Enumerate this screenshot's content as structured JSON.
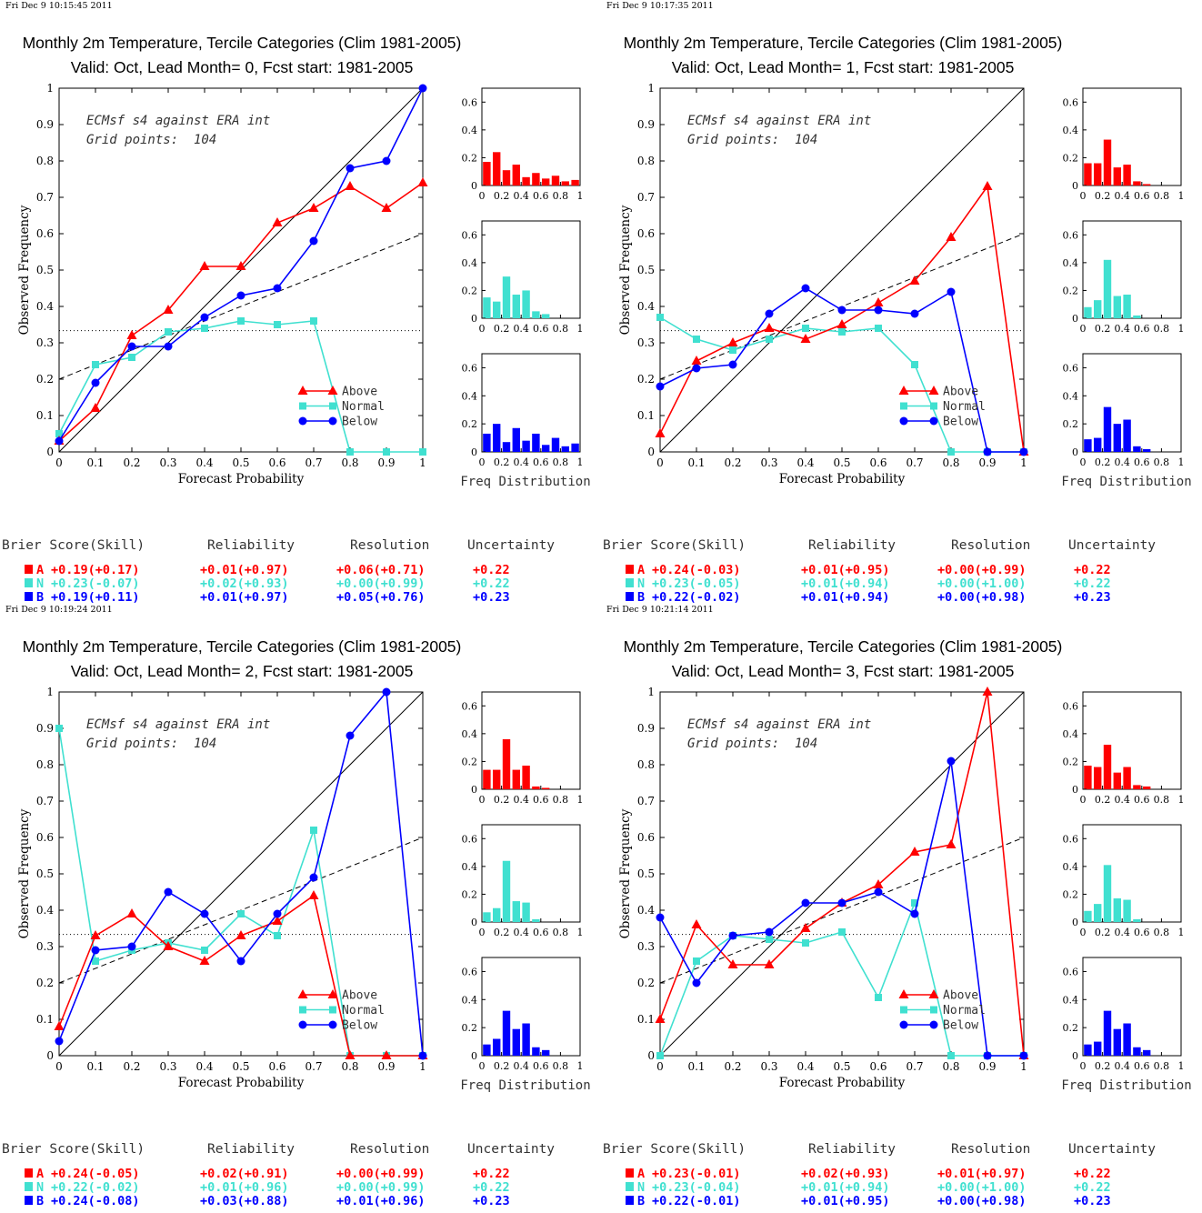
{
  "page": {
    "colors": {
      "above": "#ff0000",
      "normal": "#40e0d0",
      "below": "#0000ff",
      "axis": "#000000"
    },
    "xlabel": "Forecast Probability",
    "ylabel": "Observed Frequency",
    "freq_label": "Freq Distribution",
    "model_text": "ECMsf s4 against ERA int",
    "grid_text": "Grid points:  104",
    "legend": [
      "Above",
      "Normal",
      "Below"
    ],
    "score_headers": [
      "Brier Score(Skill)",
      "Reliability",
      "Resolution",
      "Uncertainty"
    ],
    "score_letters": [
      "A",
      "N",
      "B"
    ],
    "main_xticks": [
      "0",
      "0.1",
      "0.2",
      "0.3",
      "0.4",
      "0.5",
      "0.6",
      "0.7",
      "0.8",
      "0.9",
      "1"
    ],
    "main_yticks": [
      "0",
      "0.1",
      "0.2",
      "0.3",
      "0.4",
      "0.5",
      "0.6",
      "0.7",
      "0.8",
      "0.9",
      "1"
    ],
    "hist_xticks": [
      "0",
      "0.2",
      "0.4",
      "0.6",
      "0.8",
      "1"
    ],
    "hist_yticks": [
      "0",
      "0.2",
      "0.4",
      "0.6"
    ]
  },
  "chart_data": [
    {
      "type": "line",
      "timestamp": "Fri Dec  9 10:15:45 2011",
      "title": "Monthly 2m Temperature, Tercile Categories (Clim 1981-2005)",
      "subtitle": "Valid: Oct, Lead Month= 0, Fcst start: 1981-2005",
      "xlim": [
        0,
        1
      ],
      "ylim": [
        0,
        1
      ],
      "x": [
        0,
        0.1,
        0.2,
        0.3,
        0.4,
        0.5,
        0.6,
        0.7,
        0.8,
        0.9,
        1
      ],
      "series": [
        {
          "name": "Above",
          "values": [
            0.03,
            0.12,
            0.32,
            0.39,
            0.51,
            0.51,
            0.63,
            0.67,
            0.73,
            0.67,
            0.74
          ]
        },
        {
          "name": "Normal",
          "values": [
            0.05,
            0.24,
            0.26,
            0.33,
            0.34,
            0.36,
            0.35,
            0.36,
            0,
            0,
            0
          ]
        },
        {
          "name": "Below",
          "values": [
            0.03,
            0.19,
            0.29,
            0.29,
            0.37,
            0.43,
            0.45,
            0.58,
            0.78,
            0.8,
            1.0
          ]
        }
      ],
      "hist": {
        "above": [
          0.17,
          0.24,
          0.11,
          0.15,
          0.06,
          0.09,
          0.05,
          0.07,
          0.03,
          0.04
        ],
        "normal": [
          0.15,
          0.12,
          0.3,
          0.17,
          0.2,
          0.05,
          0.03,
          0,
          0,
          0
        ],
        "below": [
          0.13,
          0.2,
          0.07,
          0.17,
          0.08,
          0.13,
          0.05,
          0.1,
          0.04,
          0.06
        ]
      },
      "scores": [
        [
          "+0.19(+0.17)",
          "+0.01(+0.97)",
          "+0.06(+0.71)",
          "+0.22"
        ],
        [
          "+0.23(-0.07)",
          "+0.02(+0.93)",
          "+0.00(+0.99)",
          "+0.22"
        ],
        [
          "+0.19(+0.11)",
          "+0.01(+0.97)",
          "+0.05(+0.76)",
          "+0.23"
        ]
      ]
    },
    {
      "type": "line",
      "timestamp": "Fri Dec  9 10:17:35 2011",
      "title": "Monthly 2m Temperature, Tercile Categories (Clim 1981-2005)",
      "subtitle": "Valid: Oct, Lead Month= 1, Fcst start: 1981-2005",
      "xlim": [
        0,
        1
      ],
      "ylim": [
        0,
        1
      ],
      "x": [
        0,
        0.1,
        0.2,
        0.3,
        0.4,
        0.5,
        0.6,
        0.7,
        0.8,
        0.9,
        1
      ],
      "series": [
        {
          "name": "Above",
          "values": [
            0.05,
            0.25,
            0.3,
            0.34,
            0.31,
            0.35,
            0.41,
            0.47,
            0.59,
            0.73,
            0
          ]
        },
        {
          "name": "Normal",
          "values": [
            0.37,
            0.31,
            0.28,
            0.31,
            0.34,
            0.33,
            0.34,
            0.24,
            0,
            0,
            0
          ]
        },
        {
          "name": "Below",
          "values": [
            0.18,
            0.23,
            0.24,
            0.38,
            0.45,
            0.39,
            0.39,
            0.38,
            0.44,
            0,
            0
          ]
        }
      ],
      "hist": {
        "above": [
          0.16,
          0.16,
          0.33,
          0.13,
          0.15,
          0.03,
          0.01,
          0,
          0,
          0
        ],
        "normal": [
          0.08,
          0.13,
          0.42,
          0.16,
          0.17,
          0.02,
          0,
          0,
          0,
          0
        ],
        "below": [
          0.09,
          0.1,
          0.32,
          0.2,
          0.23,
          0.04,
          0.02,
          0,
          0,
          0
        ]
      },
      "scores": [
        [
          "+0.24(-0.03)",
          "+0.01(+0.95)",
          "+0.00(+0.99)",
          "+0.22"
        ],
        [
          "+0.23(-0.05)",
          "+0.01(+0.94)",
          "+0.00(+1.00)",
          "+0.22"
        ],
        [
          "+0.22(-0.02)",
          "+0.01(+0.94)",
          "+0.00(+0.98)",
          "+0.23"
        ]
      ]
    },
    {
      "type": "line",
      "timestamp": "Fri Dec  9 10:19:24 2011",
      "title": "Monthly 2m Temperature, Tercile Categories (Clim 1981-2005)",
      "subtitle": "Valid: Oct, Lead Month= 2, Fcst start: 1981-2005",
      "xlim": [
        0,
        1
      ],
      "ylim": [
        0,
        1
      ],
      "x": [
        0,
        0.1,
        0.2,
        0.3,
        0.4,
        0.5,
        0.6,
        0.7,
        0.8,
        0.9,
        1
      ],
      "series": [
        {
          "name": "Above",
          "values": [
            0.08,
            0.33,
            0.39,
            0.3,
            0.26,
            0.33,
            0.37,
            0.44,
            0,
            0,
            0
          ]
        },
        {
          "name": "Normal",
          "values": [
            0.9,
            0.26,
            0.29,
            0.31,
            0.29,
            0.39,
            0.33,
            0.62,
            0,
            0,
            0
          ]
        },
        {
          "name": "Below",
          "values": [
            0.04,
            0.29,
            0.3,
            0.45,
            0.39,
            0.26,
            0.39,
            0.49,
            0.88,
            1.0,
            0
          ]
        }
      ],
      "hist": {
        "above": [
          0.14,
          0.14,
          0.36,
          0.14,
          0.17,
          0.02,
          0.01,
          0,
          0,
          0
        ],
        "normal": [
          0.07,
          0.1,
          0.44,
          0.15,
          0.14,
          0.02,
          0,
          0,
          0,
          0
        ],
        "below": [
          0.08,
          0.12,
          0.32,
          0.19,
          0.23,
          0.06,
          0.04,
          0,
          0,
          0
        ]
      },
      "scores": [
        [
          "+0.24(-0.05)",
          "+0.02(+0.91)",
          "+0.00(+0.99)",
          "+0.22"
        ],
        [
          "+0.22(-0.02)",
          "+0.01(+0.96)",
          "+0.00(+0.99)",
          "+0.22"
        ],
        [
          "+0.24(-0.08)",
          "+0.03(+0.88)",
          "+0.01(+0.96)",
          "+0.23"
        ]
      ]
    },
    {
      "type": "line",
      "timestamp": "Fri Dec  9 10:21:14 2011",
      "title": "Monthly 2m Temperature, Tercile Categories (Clim 1981-2005)",
      "subtitle": "Valid: Oct, Lead Month= 3, Fcst start: 1981-2005",
      "xlim": [
        0,
        1
      ],
      "ylim": [
        0,
        1
      ],
      "x": [
        0,
        0.1,
        0.2,
        0.3,
        0.4,
        0.5,
        0.6,
        0.7,
        0.8,
        0.9,
        1
      ],
      "series": [
        {
          "name": "Above",
          "values": [
            0.1,
            0.36,
            0.25,
            0.25,
            0.35,
            0.42,
            0.47,
            0.56,
            0.58,
            1.0,
            0
          ]
        },
        {
          "name": "Normal",
          "values": [
            0,
            0.26,
            0.33,
            0.32,
            0.31,
            0.34,
            0.16,
            0.42,
            0,
            0,
            0
          ]
        },
        {
          "name": "Below",
          "values": [
            0.38,
            0.2,
            0.33,
            0.34,
            0.42,
            0.42,
            0.45,
            0.39,
            0.81,
            0,
            0
          ]
        }
      ],
      "hist": {
        "above": [
          0.17,
          0.16,
          0.32,
          0.12,
          0.16,
          0.03,
          0.02,
          0,
          0,
          0
        ],
        "normal": [
          0.08,
          0.13,
          0.41,
          0.17,
          0.16,
          0.02,
          0,
          0,
          0,
          0
        ],
        "below": [
          0.08,
          0.1,
          0.32,
          0.19,
          0.23,
          0.06,
          0.04,
          0,
          0,
          0
        ]
      },
      "scores": [
        [
          "+0.23(-0.01)",
          "+0.02(+0.93)",
          "+0.01(+0.97)",
          "+0.22"
        ],
        [
          "+0.23(-0.04)",
          "+0.01(+0.94)",
          "+0.00(+1.00)",
          "+0.22"
        ],
        [
          "+0.22(-0.01)",
          "+0.01(+0.95)",
          "+0.00(+0.98)",
          "+0.23"
        ]
      ]
    }
  ]
}
